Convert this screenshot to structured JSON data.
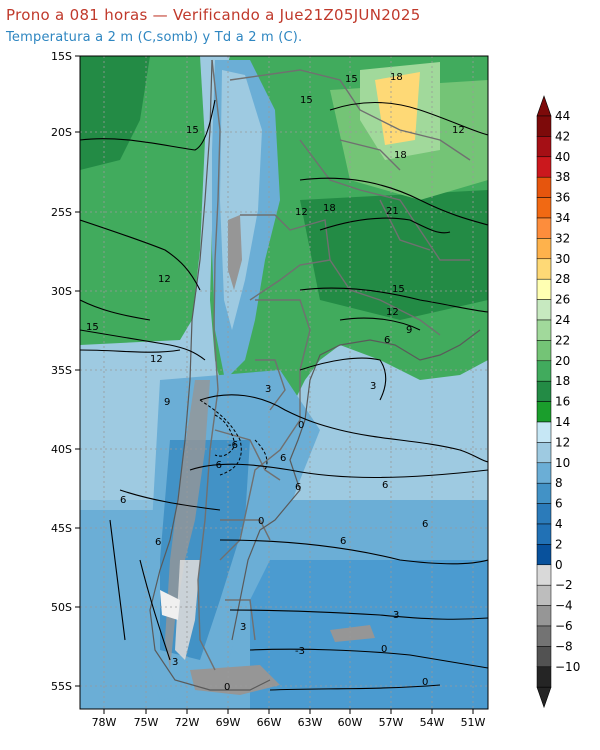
{
  "header": {
    "title": "Prono a 081 horas — Verificando a Jue21Z05JUN2025",
    "subtitle": "Temperatura a 2 m (C,somb) y Td a 2 m (C)."
  },
  "axes": {
    "lat_labels": [
      "15S",
      "20S",
      "25S",
      "30S",
      "35S",
      "40S",
      "45S",
      "50S",
      "55S"
    ],
    "lon_labels": [
      "78W",
      "75W",
      "72W",
      "69W",
      "66W",
      "63W",
      "60W",
      "57W",
      "54W",
      "51W"
    ]
  },
  "colorbar": {
    "levels": [
      "44",
      "42",
      "40",
      "38",
      "36",
      "34",
      "32",
      "30",
      "28",
      "26",
      "24",
      "22",
      "20",
      "18",
      "16",
      "14",
      "12",
      "10",
      "8",
      "6",
      "4",
      "2",
      "0",
      "−2",
      "−4",
      "−6",
      "−8",
      "−10"
    ],
    "colors": [
      "#7d0a0a",
      "#a50f15",
      "#cb181d",
      "#e6550d",
      "#f16913",
      "#fd8d3c",
      "#feb24c",
      "#fed976",
      "#ffffb2",
      "#c7e9c0",
      "#a1d99b",
      "#74c476",
      "#41ab5d",
      "#238b45",
      "#1a9e2c",
      "#c6e7f5",
      "#9ecae1",
      "#6baed6",
      "#4292c6",
      "#2b7bba",
      "#2171b5",
      "#08519c",
      "#d9d9d9",
      "#bdbdbd",
      "#969696",
      "#737373",
      "#525252",
      "#252525"
    ]
  },
  "contour_labels": [
    "15",
    "18",
    "15",
    "12",
    "15",
    "18",
    "12",
    "18",
    "21",
    "12",
    "15",
    "12",
    "12",
    "9",
    "15",
    "6",
    "3",
    "9",
    "0",
    "6",
    "3",
    "6",
    "6",
    "6",
    "-6",
    "-6",
    "6",
    "0",
    "6",
    "6",
    "3",
    "3",
    "-3",
    "0",
    "3",
    "0",
    "0"
  ],
  "colors": {
    "title": "#c0392b",
    "subtitle": "#2e86c1",
    "ocean": "#9ecae1",
    "ocean_south": "#6baed6",
    "warm_land": "#41ab5d",
    "andes": "#6baed6"
  }
}
